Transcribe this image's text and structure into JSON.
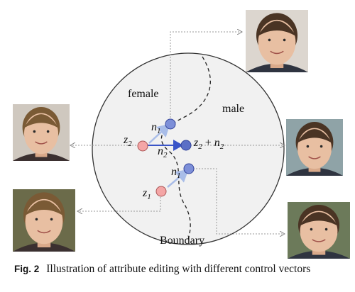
{
  "labels": {
    "female": "female",
    "male": "male",
    "boundary": "Boundary",
    "z1_main": "z",
    "z1_sub": "1",
    "z2_main": "z",
    "z2_sub": "2",
    "n1_main": "n",
    "n1_sub": "1",
    "n2_main": "n",
    "n2_sub": "2",
    "sum_z_main": "z",
    "sum_z_sub": "2",
    "sum_plus": " + ",
    "sum_n_main": "n",
    "sum_n_sub": "2"
  },
  "caption": {
    "prefix": "Fig. 2",
    "text": "Illustration of attribute editing with different control vectors"
  },
  "faces": [
    {
      "id": "male-top",
      "kind": "male"
    },
    {
      "id": "female-left",
      "kind": "female"
    },
    {
      "id": "male-right",
      "kind": "male"
    },
    {
      "id": "female-bottom-left",
      "kind": "female"
    },
    {
      "id": "male-bottom-right",
      "kind": "male"
    }
  ],
  "colors": {
    "circle_fill": "#f1f1f1",
    "circle_stroke": "#333333",
    "point_red": "#f4a6a6",
    "point_blue": "#7d8fd8",
    "arrow_blue": "#3a55c8",
    "arrow_light": "#a9bde8",
    "connector": "#999999"
  }
}
